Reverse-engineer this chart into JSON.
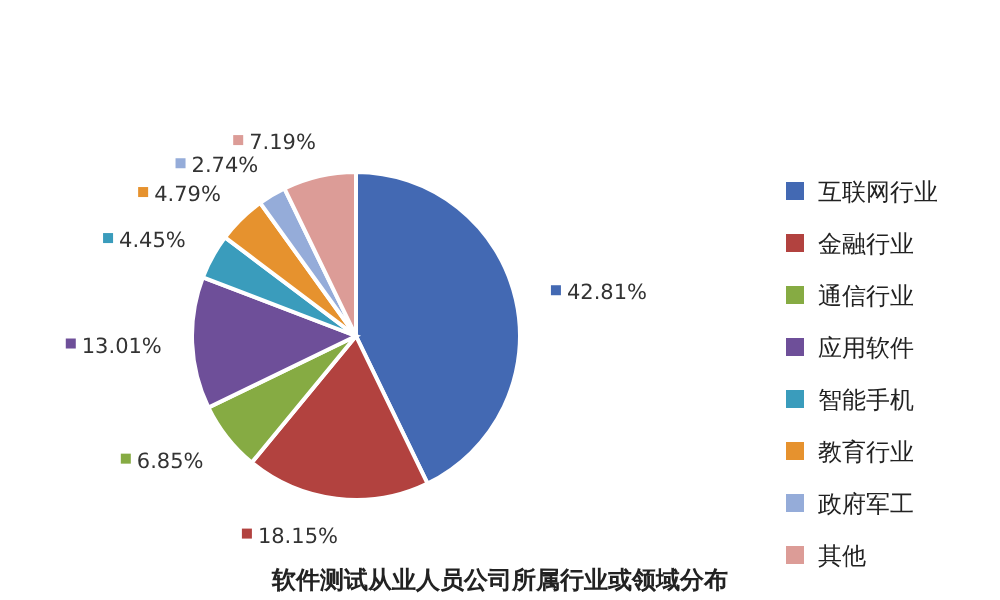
{
  "chart_data": {
    "type": "pie",
    "title": "软件测试从业人员公司所属行业或领域分布",
    "categories": [
      "互联网行业",
      "金融行业",
      "通信行业",
      "应用软件",
      "智能手机",
      "教育行业",
      "政府军工",
      "其他"
    ],
    "values": [
      42.81,
      18.15,
      6.85,
      13.01,
      4.45,
      4.79,
      2.74,
      7.19
    ],
    "value_labels": [
      "42.81%",
      "18.15%",
      "6.85%",
      "13.01%",
      "4.45%",
      "4.79%",
      "2.74%",
      "7.19%"
    ],
    "colors": [
      "#4369b3",
      "#b2423f",
      "#86ab43",
      "#6e4f99",
      "#3a9cbc",
      "#e6922e",
      "#95acd9",
      "#dc9c97"
    ],
    "legend": "right"
  }
}
